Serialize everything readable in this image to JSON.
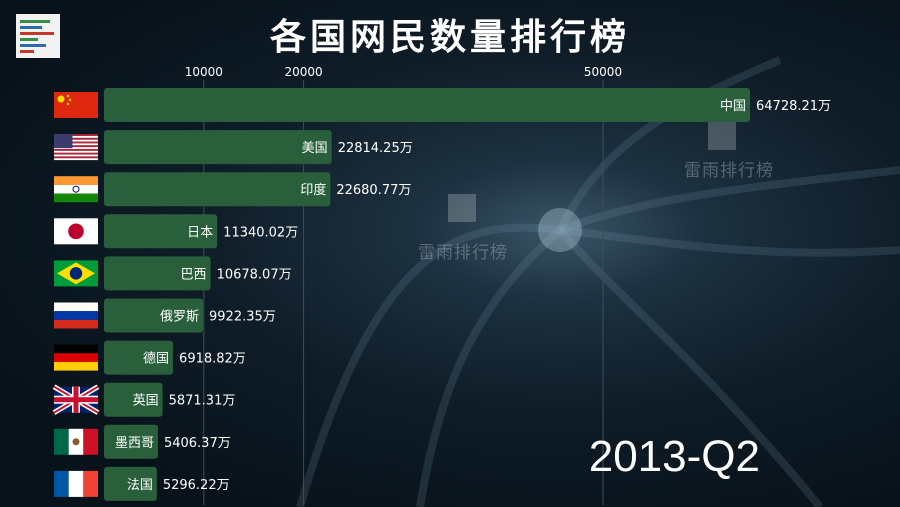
{
  "header": {
    "title": "各国网民数量排行榜"
  },
  "period_label": "2013-Q2",
  "watermark": {
    "text": "雷雨排行榜"
  },
  "colors": {
    "bar": "#2a5f3c",
    "text": "#ffffff",
    "grid": "#3d4f5c"
  },
  "chart_data": {
    "type": "bar",
    "orientation": "horizontal",
    "title": "各国网民数量排行榜",
    "period": "2013-Q2",
    "unit": "万",
    "categories": [
      "中国",
      "美国",
      "印度",
      "日本",
      "巴西",
      "俄罗斯",
      "德国",
      "英国",
      "墨西哥",
      "法国"
    ],
    "values": [
      64728.21,
      22814.25,
      22680.77,
      11340.02,
      10678.07,
      9922.35,
      6918.82,
      5871.31,
      5406.37,
      5296.22
    ],
    "value_labels": [
      "64728.21万",
      "22814.25万",
      "22680.77万",
      "11340.02万",
      "10678.07万",
      "9922.35万",
      "6918.82万",
      "5871.31万",
      "5406.37万",
      "5296.22万"
    ],
    "flags": [
      "china-flag",
      "usa-flag",
      "india-flag",
      "japan-flag",
      "brazil-flag",
      "russia-flag",
      "germany-flag",
      "uk-flag",
      "mexico-flag",
      "france-flag"
    ],
    "x_ticks": [
      10000,
      20000,
      50000
    ],
    "x_tick_labels": [
      "10000",
      "20000",
      "50000"
    ],
    "grid": true
  }
}
